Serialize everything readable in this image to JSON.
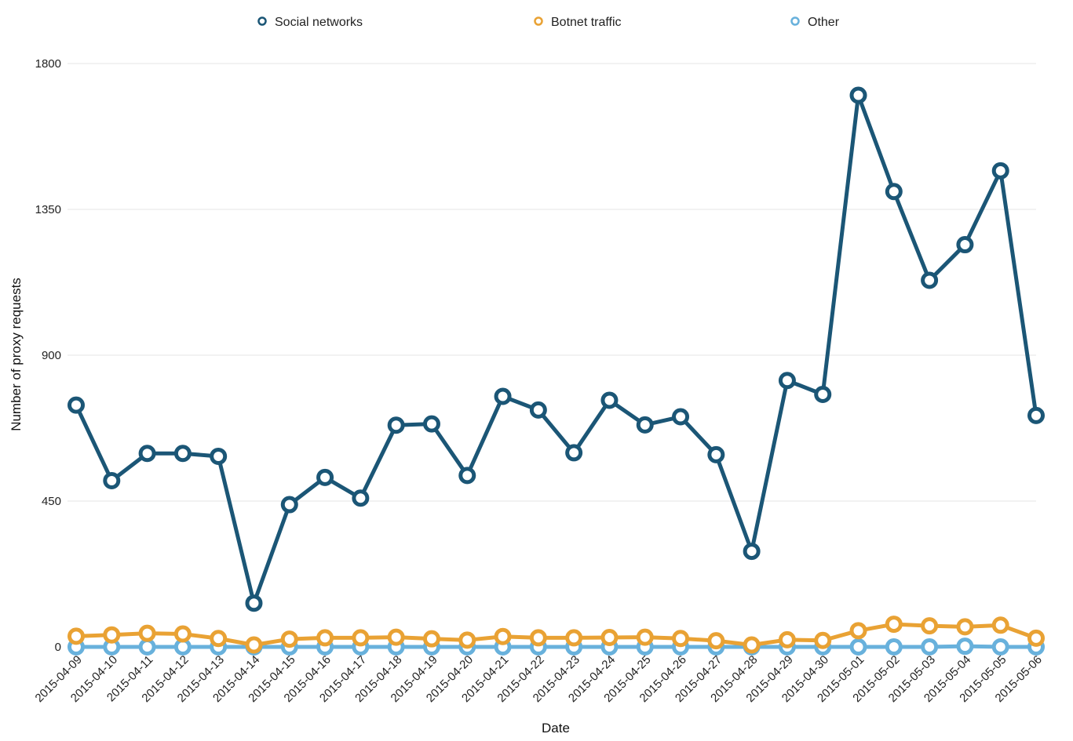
{
  "chart_data": {
    "type": "line",
    "title": "",
    "xlabel": "Date",
    "ylabel": "Number of proxy requests",
    "ylim": [
      0,
      1800
    ],
    "yticks": [
      0,
      450,
      900,
      1350,
      1800
    ],
    "grid": true,
    "legend_position": "top",
    "categories": [
      "2015-04-09",
      "2015-04-10",
      "2015-04-11",
      "2015-04-12",
      "2015-04-13",
      "2015-04-14",
      "2015-04-15",
      "2015-04-16",
      "2015-04-17",
      "2015-04-18",
      "2015-04-19",
      "2015-04-20",
      "2015-04-21",
      "2015-04-22",
      "2015-04-23",
      "2015-04-24",
      "2015-04-25",
      "2015-04-26",
      "2015-04-27",
      "2015-04-28",
      "2015-04-29",
      "2015-04-30",
      "2015-05-01",
      "2015-05-02",
      "2015-05-03",
      "2015-05-04",
      "2015-05-05",
      "2015-05-06"
    ],
    "series": [
      {
        "name": "Social networks",
        "color": "#1b5676",
        "values": [
          746,
          513,
          597,
          597,
          588,
          135,
          439,
          523,
          459,
          684,
          688,
          529,
          773,
          731,
          599,
          761,
          685,
          710,
          593,
          295,
          822,
          779,
          1702,
          1405,
          1131,
          1241,
          1469,
          714
        ]
      },
      {
        "name": "Botnet traffic",
        "color": "#e9a234",
        "values": [
          33,
          37,
          42,
          40,
          26,
          6,
          24,
          28,
          28,
          30,
          25,
          21,
          32,
          28,
          28,
          29,
          30,
          26,
          19,
          6,
          22,
          20,
          50,
          70,
          65,
          62,
          67,
          27
        ]
      },
      {
        "name": "Other",
        "color": "#68b1dc",
        "values": [
          0,
          0,
          0,
          0,
          0,
          0,
          0,
          0,
          0,
          0,
          0,
          0,
          0,
          0,
          0,
          0,
          0,
          0,
          0,
          0,
          0,
          0,
          0,
          0,
          0,
          2,
          0,
          0
        ]
      }
    ]
  }
}
